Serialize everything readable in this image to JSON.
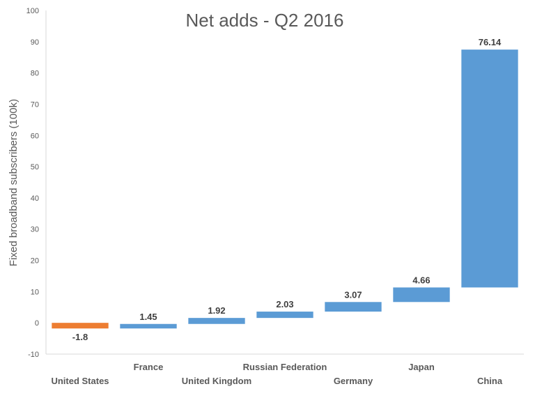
{
  "chart_data": {
    "type": "waterfall",
    "title": "Net adds - Q2 2016",
    "xlabel": "",
    "ylabel": "Fixed broadband subscribers (100k)",
    "ylim": [
      -10,
      100
    ],
    "yticks": [
      -10,
      0,
      10,
      20,
      30,
      40,
      50,
      60,
      70,
      80,
      90,
      100
    ],
    "grid": false,
    "legend": "none",
    "categories": [
      "United States",
      "France",
      "United Kingdom",
      "Russian Federation",
      "Germany",
      "Japan",
      "China"
    ],
    "values": [
      -1.8,
      1.45,
      1.92,
      2.03,
      3.07,
      4.66,
      76.14
    ],
    "data_labels": [
      "-1.8",
      "1.45",
      "1.92",
      "2.03",
      "3.07",
      "4.66",
      "76.14"
    ],
    "colors": {
      "increase": "#5B9BD5",
      "decrease": "#ED7D31",
      "text": "#595959",
      "label": "#404040",
      "axis": "#D9D9D9"
    }
  }
}
